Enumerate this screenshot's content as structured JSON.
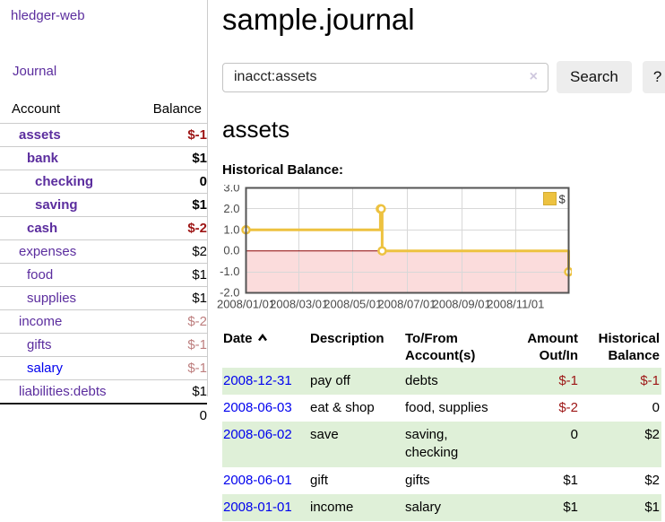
{
  "app": {
    "brand": "hledger-web"
  },
  "nav": {
    "journal": "Journal"
  },
  "colors": {
    "link_purple": "#5b2d9e",
    "link_blue": "#0000ee",
    "negative_strong": "#9d1515",
    "negative_soft": "#bd7e7e",
    "row_stripe_green": "#dff0d8",
    "series_gold": "#edc240",
    "negative_region_pink": "#fbdcdc",
    "zero_line_red": "#8b0000",
    "button_gray": "#ededed"
  },
  "sidebar": {
    "columns": {
      "account": "Account",
      "balance": "Balance"
    },
    "accounts": [
      {
        "name": "assets",
        "indent": 1,
        "balance": "$-1",
        "bold": true,
        "neg": "strong",
        "blue": false
      },
      {
        "name": "bank",
        "indent": 2,
        "balance": "$1",
        "bold": true,
        "neg": "none",
        "blue": false
      },
      {
        "name": "checking",
        "indent": 3,
        "balance": "0",
        "bold": true,
        "neg": "none",
        "blue": false
      },
      {
        "name": "saving",
        "indent": 3,
        "balance": "$1",
        "bold": true,
        "neg": "none",
        "blue": false
      },
      {
        "name": "cash",
        "indent": 2,
        "balance": "$-2",
        "bold": true,
        "neg": "strong",
        "blue": false
      },
      {
        "name": "expenses",
        "indent": 1,
        "balance": "$2",
        "bold": false,
        "neg": "none",
        "blue": false
      },
      {
        "name": "food",
        "indent": 2,
        "balance": "$1",
        "bold": false,
        "neg": "none",
        "blue": false
      },
      {
        "name": "supplies",
        "indent": 2,
        "balance": "$1",
        "bold": false,
        "neg": "none",
        "blue": false
      },
      {
        "name": "income",
        "indent": 1,
        "balance": "$-2",
        "bold": false,
        "neg": "soft",
        "blue": false
      },
      {
        "name": "gifts",
        "indent": 2,
        "balance": "$-1",
        "bold": false,
        "neg": "soft",
        "blue": false
      },
      {
        "name": "salary",
        "indent": 2,
        "balance": "$-1",
        "bold": false,
        "neg": "soft",
        "blue": true
      },
      {
        "name": "liabilities:debts",
        "indent": 1,
        "balance": "$1",
        "bold": false,
        "neg": "none",
        "blue": false
      }
    ],
    "total": "0"
  },
  "main": {
    "title": "sample.journal",
    "account_heading": "assets",
    "chart_heading": "Historical Balance:"
  },
  "search": {
    "value": "inacct:assets",
    "clear_icon": "×",
    "button": "Search",
    "help": "?"
  },
  "chart_data": {
    "type": "line",
    "title": "Historical Balance:",
    "series": [
      {
        "name": "$",
        "color": "#edc240",
        "steps": true,
        "points": [
          {
            "date": "2008-01-01",
            "value": 1
          },
          {
            "date": "2008-06-01",
            "value": 2
          },
          {
            "date": "2008-06-02",
            "value": 2
          },
          {
            "date": "2008-06-03",
            "value": 0
          },
          {
            "date": "2008-12-31",
            "value": -1
          }
        ]
      }
    ],
    "x_ticks": [
      "2008/01/01",
      "2008/03/01",
      "2008/05/01",
      "2008/07/01",
      "2008/09/01",
      "2008/11/01"
    ],
    "y_ticks": [
      "3.0",
      "2.0",
      "1.0",
      "0.0",
      "-1.0",
      "-2.0"
    ],
    "xlim": [
      "2008-01-01",
      "2008-12-31"
    ],
    "ylim": [
      -2,
      3
    ],
    "grid": true,
    "legend": {
      "label": "$",
      "position": "top-right"
    },
    "negative_region_fill": "#fbdcdc",
    "zero_line_color": "#8b0000"
  },
  "register": {
    "columns": {
      "date": "Date",
      "description": "Description",
      "accounts": "To/From Account(s)",
      "amount": "Amount Out/In",
      "balance": "Historical Balance"
    },
    "sort": {
      "column": "date",
      "direction": "ascending"
    },
    "rows": [
      {
        "date": "2008-12-31",
        "description": "pay off",
        "accounts": "debts",
        "amount": "$-1",
        "balance": "$-1",
        "amount_neg": true,
        "balance_neg": true
      },
      {
        "date": "2008-06-03",
        "description": "eat & shop",
        "accounts": "food, supplies",
        "amount": "$-2",
        "balance": "0",
        "amount_neg": true,
        "balance_neg": false
      },
      {
        "date": "2008-06-02",
        "description": "save",
        "accounts": "saving, checking",
        "amount": "0",
        "balance": "$2",
        "amount_neg": false,
        "balance_neg": false
      },
      {
        "date": "2008-06-01",
        "description": "gift",
        "accounts": "gifts",
        "amount": "$1",
        "balance": "$2",
        "amount_neg": false,
        "balance_neg": false
      },
      {
        "date": "2008-01-01",
        "description": "income",
        "accounts": "salary",
        "amount": "$1",
        "balance": "$1",
        "amount_neg": false,
        "balance_neg": false
      }
    ]
  }
}
